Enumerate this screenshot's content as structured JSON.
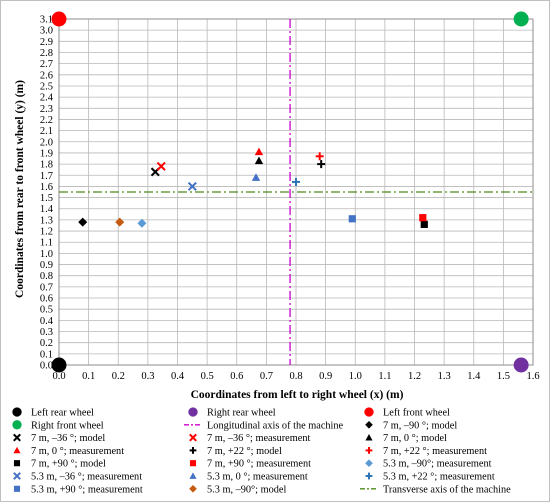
{
  "chart_data": {
    "type": "scatter",
    "xlabel": "Coordinates from left to right wheel (x) (m)",
    "ylabel": "Coordinates from rear to front wheel (y) (m)",
    "xlim": [
      0,
      1.6
    ],
    "ylim": [
      0,
      3.1
    ],
    "xticks": [
      "0.0",
      "0.1",
      "0.2",
      "0.3",
      "0.4",
      "0.5",
      "0.6",
      "0.7",
      "0.8",
      "0.9",
      "1.0",
      "1.1",
      "1.2",
      "1.3",
      "1.4",
      "1.5",
      "1.6"
    ],
    "yticks": [
      "0.0",
      "0.1",
      "0.2",
      "0.3",
      "0.4",
      "0.5",
      "0.6",
      "0.7",
      "0.8",
      "0.9",
      "1.0",
      "1.1",
      "1.2",
      "1.3",
      "1.4",
      "1.5",
      "1.6",
      "1.7",
      "1.8",
      "1.9",
      "2.0",
      "2.1",
      "2.2",
      "2.3",
      "2.4",
      "2.5",
      "2.6",
      "2.7",
      "2.8",
      "2.9",
      "3.0",
      "3.1"
    ],
    "grid": true,
    "legend_position": "bottom",
    "reference_lines": [
      {
        "name": "Longitudinal axis of the machine",
        "orientation": "vertical",
        "value": 0.78,
        "color": "#cc00cc",
        "style": "dash-dot"
      },
      {
        "name": "Transverse axis of the machine",
        "orientation": "horizontal",
        "value": 1.55,
        "color": "#4e8a1e",
        "style": "dash-dot"
      }
    ],
    "series": [
      {
        "name": "Left rear wheel",
        "marker": "circle-large",
        "color": "#000000",
        "points": [
          [
            0.0,
            0.0
          ]
        ]
      },
      {
        "name": "Right rear wheel",
        "marker": "circle-large",
        "color": "#7030a0",
        "points": [
          [
            1.56,
            0.0
          ]
        ]
      },
      {
        "name": "Left front wheel",
        "marker": "circle-large",
        "color": "#ff0000",
        "points": [
          [
            0.0,
            3.1
          ]
        ]
      },
      {
        "name": "Right front wheel",
        "marker": "circle-large",
        "color": "#00b050",
        "points": [
          [
            1.56,
            3.1
          ]
        ]
      },
      {
        "name": "7 m, –90 °; model",
        "marker": "diamond",
        "color": "#000000",
        "points": [
          [
            0.08,
            1.28
          ]
        ]
      },
      {
        "name": "7 m, –36 °; model",
        "marker": "x",
        "color": "#000000",
        "points": [
          [
            0.325,
            1.73
          ]
        ]
      },
      {
        "name": "7 m, –36 °;  measurement",
        "marker": "x",
        "color": "#ff0000",
        "points": [
          [
            0.345,
            1.78
          ]
        ]
      },
      {
        "name": "7 m, 0 °; model",
        "marker": "triangle",
        "color": "#000000",
        "points": [
          [
            0.675,
            1.83
          ]
        ]
      },
      {
        "name": "7 m, 0 °;  measurement",
        "marker": "triangle",
        "color": "#ff0000",
        "points": [
          [
            0.675,
            1.91
          ]
        ]
      },
      {
        "name": "7 m, +22 °; model",
        "marker": "plus",
        "color": "#000000",
        "points": [
          [
            0.885,
            1.8
          ]
        ]
      },
      {
        "name": "7 m, +22 °;  measurement",
        "marker": "plus",
        "color": "#ff0000",
        "points": [
          [
            0.88,
            1.87
          ]
        ]
      },
      {
        "name": "7 m, +90 °; model",
        "marker": "square",
        "color": "#000000",
        "points": [
          [
            1.233,
            1.26
          ]
        ]
      },
      {
        "name": "7 m, +90 °;  measurement",
        "marker": "square",
        "color": "#ff0000",
        "points": [
          [
            1.228,
            1.32
          ]
        ]
      },
      {
        "name": "5.3 m, –90°;  measurement",
        "marker": "diamond",
        "color": "#5b9bd5",
        "points": [
          [
            0.28,
            1.27
          ]
        ]
      },
      {
        "name": "5.3 m, –36 °;  measurement",
        "marker": "x",
        "color": "#4472c4",
        "points": [
          [
            0.45,
            1.6
          ]
        ]
      },
      {
        "name": "5.3 m, 0 °;  measurement",
        "marker": "triangle",
        "color": "#4472c4",
        "points": [
          [
            0.665,
            1.68
          ]
        ]
      },
      {
        "name": "5.3 m, +22 °;  measurement",
        "marker": "plus",
        "color": "#2e75b6",
        "points": [
          [
            0.8,
            1.64
          ]
        ]
      },
      {
        "name": "5.3 m, +90 °;  measurement",
        "marker": "square",
        "color": "#4472c4",
        "points": [
          [
            0.99,
            1.31
          ]
        ]
      },
      {
        "name": "5.3 m, –90°; model",
        "marker": "diamond",
        "color": "#c55a11",
        "points": [
          [
            0.205,
            1.28
          ]
        ]
      }
    ],
    "legend": [
      {
        "label": "Left rear wheel",
        "marker": "circle-large",
        "color": "#000000"
      },
      {
        "label": "Right rear wheel",
        "marker": "circle-large",
        "color": "#7030a0"
      },
      {
        "label": "Left front wheel",
        "marker": "circle-large",
        "color": "#ff0000"
      },
      {
        "label": "Right front wheel",
        "marker": "circle-large",
        "color": "#00b050"
      },
      {
        "label": "Longitudinal axis of the machine",
        "marker": "dashdot-line",
        "color": "#cc00cc"
      },
      {
        "label": "7 m, –90 °; model",
        "marker": "diamond",
        "color": "#000000"
      },
      {
        "label": "7 m, –36 °; model",
        "marker": "x",
        "color": "#000000"
      },
      {
        "label": "7 m, –36 °;  measurement",
        "marker": "x",
        "color": "#ff0000"
      },
      {
        "label": "7 m, 0 °; model",
        "marker": "triangle",
        "color": "#000000"
      },
      {
        "label": "7 m, 0 °;  measurement",
        "marker": "triangle",
        "color": "#ff0000"
      },
      {
        "label": "7 m, +22 °; model",
        "marker": "plus",
        "color": "#000000"
      },
      {
        "label": "7 m, +22 °;  measurement",
        "marker": "plus",
        "color": "#ff0000"
      },
      {
        "label": "7 m, +90 °; model",
        "marker": "square",
        "color": "#000000"
      },
      {
        "label": "7 m, +90 °;  measurement",
        "marker": "square",
        "color": "#ff0000"
      },
      {
        "label": "5.3 m, –90°;  measurement",
        "marker": "diamond",
        "color": "#5b9bd5"
      },
      {
        "label": "5.3 m, –36 °;  measurement",
        "marker": "x",
        "color": "#4472c4"
      },
      {
        "label": "5.3 m, 0 °;  measurement",
        "marker": "triangle",
        "color": "#4472c4"
      },
      {
        "label": "5.3 m, +22 °;  measurement",
        "marker": "plus",
        "color": "#2e75b6"
      },
      {
        "label": "5.3 m, +90 °;  measurement",
        "marker": "square",
        "color": "#4472c4"
      },
      {
        "label": "5.3 m, –90°; model",
        "marker": "diamond",
        "color": "#c55a11"
      },
      {
        "label": "Transverse axis of the machine",
        "marker": "dashdot-line",
        "color": "#4e8a1e"
      }
    ]
  }
}
